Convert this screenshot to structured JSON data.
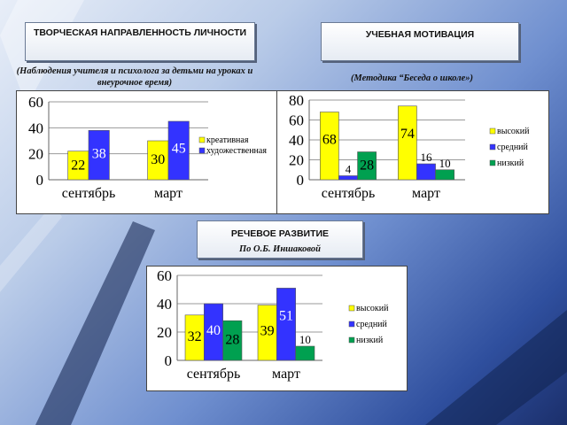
{
  "panels": {
    "creative": {
      "title": "ТВОРЧЕСКАЯ НАПРАВЛЕННОСТЬ ЛИЧНОСТИ",
      "subtitle": "(Наблюдения учителя и психолога за детьми на уроках и внеурочное время)"
    },
    "motivation": {
      "title": "УЧЕБНАЯ МОТИВАЦИЯ",
      "subtitle": "(Методика “Беседа о школе»)"
    },
    "speech": {
      "title": "РЕЧЕВОЕ РАЗВИТИЕ",
      "subtitle": "По О.Б. Иншаковой"
    }
  },
  "colors": {
    "yellow": "#ffff00",
    "blue": "#3333ff",
    "green": "#00a050"
  },
  "chart_data": [
    {
      "id": "creative",
      "type": "bar",
      "categories": [
        "сентябрь",
        "март"
      ],
      "series": [
        {
          "name": "креативная",
          "color": "#ffff00",
          "values": [
            22,
            30
          ]
        },
        {
          "name": "художественная",
          "color": "#3333ff",
          "values": [
            38,
            45
          ]
        }
      ],
      "ylim": [
        0,
        60
      ],
      "yticks": [
        "0",
        "20",
        "40",
        "60"
      ],
      "grid": true,
      "legend": "right"
    },
    {
      "id": "motivation",
      "type": "bar",
      "categories": [
        "сентябрь",
        "март"
      ],
      "series": [
        {
          "name": "высокий",
          "color": "#ffff00",
          "values": [
            68,
            74
          ]
        },
        {
          "name": "средний",
          "color": "#3333ff",
          "values": [
            4,
            16
          ]
        },
        {
          "name": "низкий",
          "color": "#00a050",
          "values": [
            28,
            10
          ]
        }
      ],
      "ylim": [
        0,
        80
      ],
      "yticks": [
        "0",
        "20",
        "40",
        "60",
        "80"
      ],
      "grid": true,
      "legend": "right"
    },
    {
      "id": "speech",
      "type": "bar",
      "categories": [
        "сентябрь",
        "март"
      ],
      "series": [
        {
          "name": "высокий",
          "color": "#ffff00",
          "values": [
            32,
            39
          ]
        },
        {
          "name": "средний",
          "color": "#3333ff",
          "values": [
            40,
            51
          ]
        },
        {
          "name": "низкий",
          "color": "#00a050",
          "values": [
            28,
            10
          ]
        }
      ],
      "ylim": [
        0,
        60
      ],
      "yticks": [
        "0",
        "20",
        "40",
        "60"
      ],
      "grid": true,
      "legend": "right"
    }
  ]
}
